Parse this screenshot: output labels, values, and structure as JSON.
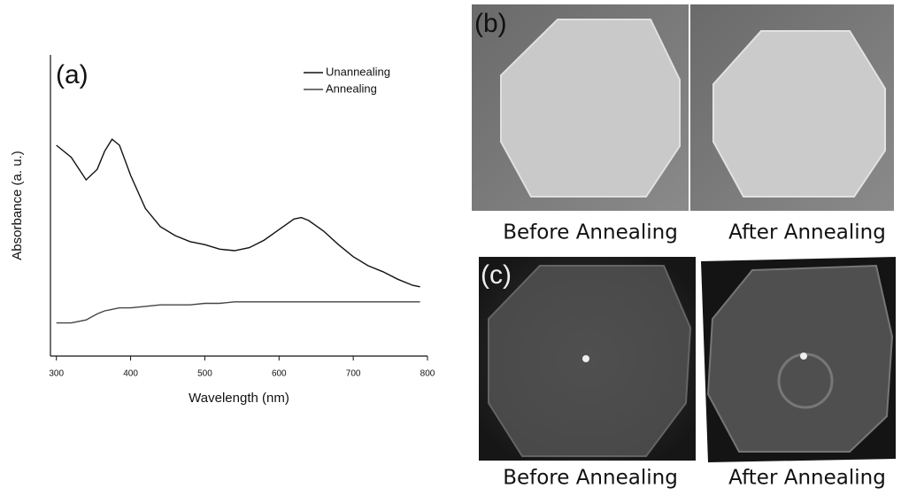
{
  "chart_data": {
    "type": "line",
    "panel_label": "(a)",
    "x_label": "Wavelength (nm)",
    "y_label": "Absorbance (a. u.)",
    "x": [
      300,
      320,
      340,
      355,
      365,
      375,
      385,
      400,
      420,
      440,
      460,
      480,
      500,
      520,
      540,
      560,
      580,
      600,
      620,
      630,
      640,
      660,
      680,
      700,
      720,
      740,
      760,
      780,
      790
    ],
    "series": [
      {
        "name": "Unannealing",
        "color": "#111111",
        "values": [
          0.7,
          0.66,
          0.585,
          0.62,
          0.68,
          0.72,
          0.7,
          0.6,
          0.49,
          0.43,
          0.4,
          0.38,
          0.37,
          0.355,
          0.35,
          0.36,
          0.385,
          0.42,
          0.455,
          0.46,
          0.45,
          0.415,
          0.37,
          0.33,
          0.3,
          0.28,
          0.255,
          0.235,
          0.23
        ]
      },
      {
        "name": "Annealing",
        "color": "#444444",
        "values": [
          0.11,
          0.11,
          0.12,
          0.14,
          0.15,
          0.155,
          0.16,
          0.16,
          0.165,
          0.17,
          0.17,
          0.17,
          0.175,
          0.175,
          0.18,
          0.18,
          0.18,
          0.18,
          0.18,
          0.18,
          0.18,
          0.18,
          0.18,
          0.18,
          0.18,
          0.18,
          0.18,
          0.18,
          0.18
        ]
      }
    ],
    "xlim": [
      292,
      800
    ],
    "xticks": [
      300,
      400,
      500,
      600,
      700,
      800
    ],
    "ylim": [
      0,
      1
    ],
    "legend": "upper right"
  },
  "photos": {
    "b": {
      "label": "(b)",
      "captions": [
        "Before Annealing",
        "After Annealing"
      ]
    },
    "c": {
      "label": "(c)",
      "captions": [
        "Before Annealing",
        "After Annealing"
      ]
    }
  }
}
